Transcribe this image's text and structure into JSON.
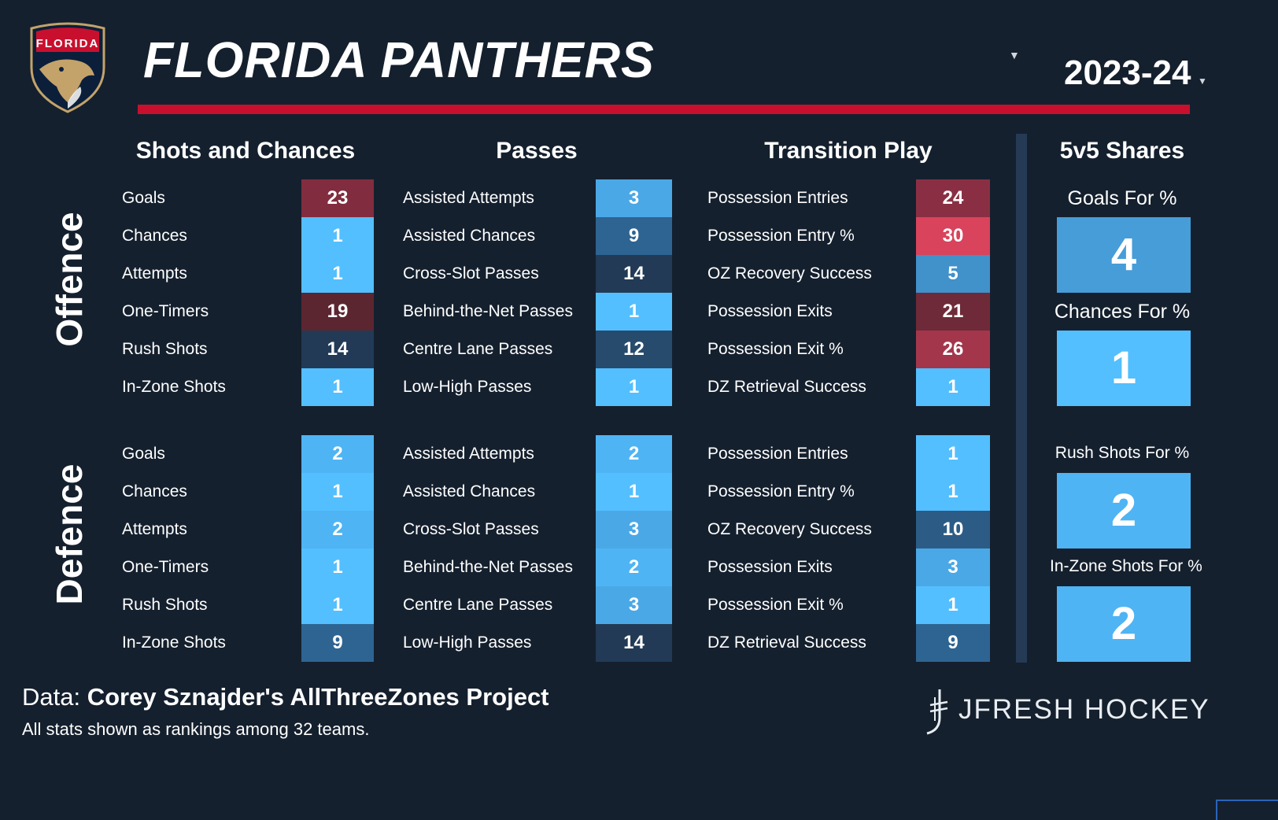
{
  "header": {
    "logo_text": "FLORIDA",
    "team": "FLORIDA PANTHERS",
    "season": "2023-24"
  },
  "colors": {
    "background": "#15202e",
    "accent_red": "#c8102e",
    "best": "#53bfff",
    "worst": "#5c2631",
    "bad": "#8a2f43",
    "highlight_red": "#d9435b"
  },
  "sections": [
    "Shots and Chances",
    "Passes",
    "Transition Play",
    "5v5 Shares"
  ],
  "groups": [
    "Offence",
    "Defence"
  ],
  "columns": [
    {
      "labels": [
        "Goals",
        "Chances",
        "Attempts",
        "One-Timers",
        "Rush Shots",
        "In-Zone Shots"
      ],
      "offence": [
        23,
        1,
        1,
        19,
        14,
        1
      ],
      "defence": [
        2,
        1,
        2,
        1,
        1,
        9
      ]
    },
    {
      "labels": [
        "Assisted Attempts",
        "Assisted Chances",
        "Cross-Slot Passes",
        "Behind-the-Net Passes",
        "Centre Lane Passes",
        "Low-High Passes"
      ],
      "offence": [
        3,
        9,
        14,
        1,
        12,
        1
      ],
      "defence": [
        2,
        1,
        3,
        2,
        3,
        14
      ]
    },
    {
      "labels": [
        "Possession Entries",
        "Possession Entry %",
        "OZ Recovery Success",
        "Possession Exits",
        "Possession Exit %",
        "DZ Retrieval Success"
      ],
      "offence": [
        24,
        30,
        5,
        21,
        26,
        1
      ],
      "defence": [
        1,
        1,
        10,
        3,
        1,
        9
      ]
    }
  ],
  "shares": [
    {
      "label": "Goals For %",
      "value": 4
    },
    {
      "label": "Chances For %",
      "value": 1
    },
    {
      "label": "Rush Shots For %",
      "value": 2
    },
    {
      "label": "In-Zone Shots For %",
      "value": 2
    }
  ],
  "footer": {
    "data_prefix": "Data: ",
    "data_source": "Corey Sznajder's AllThreeZones Project",
    "note": "All stats shown as rankings among 32 teams.",
    "brand": "JFRESH HOCKEY"
  }
}
